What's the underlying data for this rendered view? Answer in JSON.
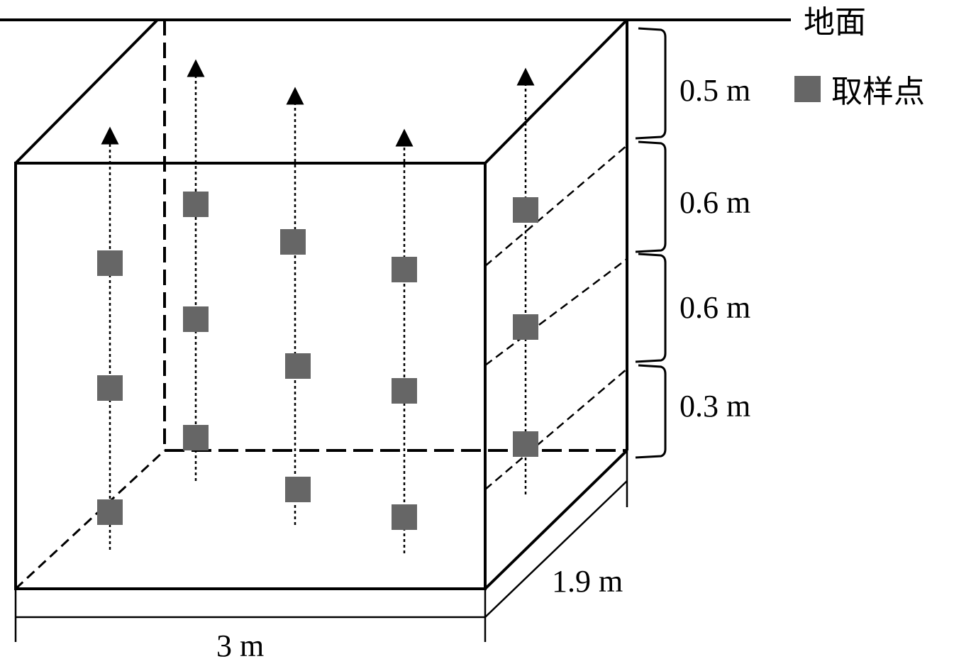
{
  "ground_label": "地面",
  "legend": {
    "label": "取样点",
    "marker_color": "#666666"
  },
  "layer_labels": [
    "0.5 m",
    "0.6 m",
    "0.6 m",
    "0.3 m"
  ],
  "width_label": "3 m",
  "depth_label": "1.9 m",
  "colors": {
    "line": "#000000",
    "sample": "#666666"
  }
}
